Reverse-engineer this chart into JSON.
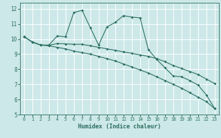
{
  "xlabel": "Humidex (Indice chaleur)",
  "background_color": "#cde8e8",
  "grid_color": "#ffffff",
  "line_color": "#2a6e62",
  "xlim": [
    -0.5,
    23.5
  ],
  "ylim": [
    5,
    12.4
  ],
  "xticks": [
    0,
    1,
    2,
    3,
    4,
    5,
    6,
    7,
    8,
    9,
    10,
    11,
    12,
    13,
    14,
    15,
    16,
    17,
    18,
    19,
    20,
    21,
    22,
    23
  ],
  "yticks": [
    5,
    6,
    7,
    8,
    9,
    10,
    11,
    12
  ],
  "line1_x": [
    0,
    1,
    2,
    3,
    4,
    5,
    6,
    7,
    8,
    9,
    10,
    11,
    12,
    13,
    14,
    15,
    16,
    17,
    18,
    19,
    20,
    21,
    22,
    23
  ],
  "line1_y": [
    10.15,
    9.8,
    9.6,
    9.6,
    10.2,
    10.15,
    11.75,
    11.9,
    10.75,
    9.6,
    10.8,
    11.1,
    11.55,
    11.45,
    11.4,
    9.3,
    8.65,
    8.1,
    7.55,
    7.5,
    7.25,
    6.95,
    6.3,
    5.4
  ],
  "line2_x": [
    0,
    1,
    2,
    3,
    4,
    5,
    6,
    7,
    8,
    9,
    10,
    11,
    12,
    13,
    14,
    15,
    16,
    17,
    18,
    19,
    20,
    21,
    22,
    23
  ],
  "line2_y": [
    10.15,
    9.8,
    9.6,
    9.58,
    9.7,
    9.68,
    9.65,
    9.65,
    9.55,
    9.45,
    9.35,
    9.25,
    9.15,
    9.05,
    8.95,
    8.85,
    8.7,
    8.5,
    8.25,
    8.05,
    7.85,
    7.65,
    7.35,
    7.05
  ],
  "line3_x": [
    0,
    1,
    2,
    3,
    4,
    5,
    6,
    7,
    8,
    9,
    10,
    11,
    12,
    13,
    14,
    15,
    16,
    17,
    18,
    19,
    20,
    21,
    22,
    23
  ],
  "line3_y": [
    10.15,
    9.8,
    9.6,
    9.55,
    9.45,
    9.35,
    9.2,
    9.1,
    9.0,
    8.85,
    8.7,
    8.55,
    8.35,
    8.15,
    7.95,
    7.75,
    7.5,
    7.25,
    7.0,
    6.75,
    6.45,
    6.15,
    5.85,
    5.4
  ]
}
